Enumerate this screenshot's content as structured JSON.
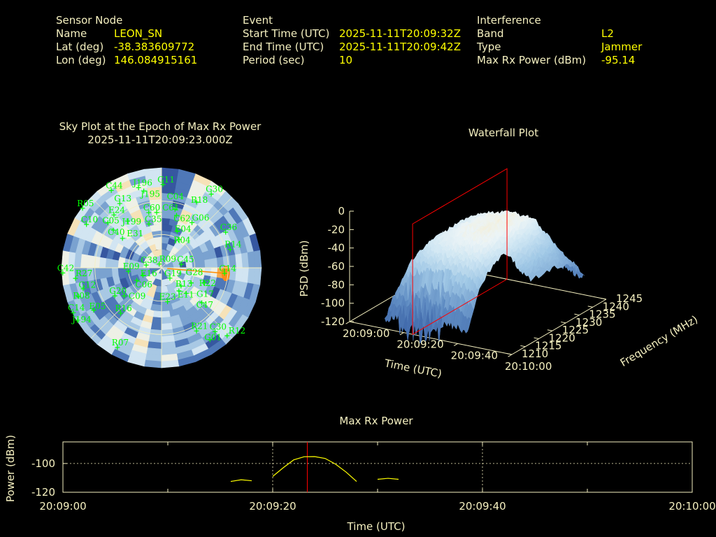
{
  "header": {
    "sensor": {
      "title": "Sensor Node",
      "rows": [
        {
          "label": "Name",
          "value": "LEON_SN"
        },
        {
          "label": "Lat (deg)",
          "value": "-38.383609772"
        },
        {
          "label": "Lon (deg)",
          "value": "146.084915161"
        }
      ]
    },
    "event": {
      "title": "Event",
      "rows": [
        {
          "label": "Start Time (UTC)",
          "value": "2025-11-11T20:09:32Z"
        },
        {
          "label": "End Time (UTC)",
          "value": "2025-11-11T20:09:42Z"
        },
        {
          "label": "Period (sec)",
          "value": "10"
        }
      ]
    },
    "interference": {
      "title": "Interference",
      "rows": [
        {
          "label": "Band",
          "value": "L2"
        },
        {
          "label": "Type",
          "value": "Jammer"
        },
        {
          "label": "Max Rx Power (dBm)",
          "value": "-95.14"
        }
      ]
    }
  },
  "colors": {
    "label": "#f5f0c0",
    "value": "#ffff00",
    "satellite": "#00ff00",
    "marker": "#ff0000",
    "trace": "#ffff00"
  },
  "chart_data": [
    {
      "type": "heatmap",
      "subtype": "polar-sky-plot",
      "title": "Sky Plot at the Epoch of Max Rx Power",
      "subtitle": "2025-11-11T20:09:23.000Z",
      "elevation_rings_deg": [
        0,
        30,
        60
      ],
      "hotspot": {
        "az": 95,
        "el": 32,
        "near": "G14"
      },
      "satellites": [
        {
          "id": "G11",
          "az": 1,
          "el": 15
        },
        {
          "id": "J196",
          "az": 344,
          "el": 15
        },
        {
          "id": "J195",
          "az": 347,
          "el": 19
        },
        {
          "id": "C44",
          "az": 327,
          "el": 7
        },
        {
          "id": "G30",
          "az": 34,
          "el": 10
        },
        {
          "id": "R18",
          "az": 28,
          "el": 23
        },
        {
          "id": "G13",
          "az": 327,
          "el": 21
        },
        {
          "id": "R05",
          "az": 307,
          "el": 1
        },
        {
          "id": "E24",
          "az": 318,
          "el": 26
        },
        {
          "id": "C60",
          "az": 347,
          "el": 39
        },
        {
          "id": "C61",
          "az": 355,
          "el": 40
        },
        {
          "id": "C04",
          "az": 13,
          "el": 36
        },
        {
          "id": "C62",
          "az": 16,
          "el": 41
        },
        {
          "id": "C05",
          "az": 310,
          "el": 27
        },
        {
          "id": "J199",
          "az": 324,
          "el": 38
        },
        {
          "id": "G06",
          "az": 34,
          "el": 41
        },
        {
          "id": "C10",
          "az": 300,
          "el": 12
        },
        {
          "id": "C35",
          "az": 344,
          "el": 49
        },
        {
          "id": "C40",
          "az": 308,
          "el": 35
        },
        {
          "id": "E04",
          "az": 23,
          "el": 54
        },
        {
          "id": "C36",
          "az": 61,
          "el": 24
        },
        {
          "id": "E31",
          "az": 307,
          "el": 46
        },
        {
          "id": "R04",
          "az": 32,
          "el": 60
        },
        {
          "id": "R14",
          "az": 75,
          "el": 26
        },
        {
          "id": "C42",
          "az": 267,
          "el": 1
        },
        {
          "id": "E09",
          "az": 264,
          "el": 60
        },
        {
          "id": "C38",
          "az": 280,
          "el": 76
        },
        {
          "id": "R09",
          "az": 329,
          "el": 86
        },
        {
          "id": "C45",
          "az": 80,
          "el": 72
        },
        {
          "id": "G14",
          "az": 95,
          "el": 33
        },
        {
          "id": "R27",
          "az": 263,
          "el": 12
        },
        {
          "id": "E16",
          "az": 248,
          "el": 72
        },
        {
          "id": "C06",
          "az": 243,
          "el": 65
        },
        {
          "id": "G19",
          "az": 141,
          "el": 78
        },
        {
          "id": "R13",
          "az": 133,
          "el": 66
        },
        {
          "id": "G28",
          "az": 117,
          "el": 60
        },
        {
          "id": "R22",
          "az": 109,
          "el": 49
        },
        {
          "id": "G12",
          "az": 255,
          "el": 17
        },
        {
          "id": "E11",
          "az": 143,
          "el": 64
        },
        {
          "id": "G17",
          "az": 136,
          "el": 58
        },
        {
          "id": "R08",
          "az": 251,
          "el": 11
        },
        {
          "id": "G20",
          "az": 239,
          "el": 41
        },
        {
          "id": "C09",
          "az": 233,
          "el": 48
        },
        {
          "id": "E23",
          "az": 170,
          "el": 59
        },
        {
          "id": "C47",
          "az": 131,
          "el": 42
        },
        {
          "id": "C14",
          "az": 243,
          "el": 1
        },
        {
          "id": "E05",
          "az": 238,
          "el": 18
        },
        {
          "id": "R16",
          "az": 222,
          "el": 35
        },
        {
          "id": "J194",
          "az": 238,
          "el": 1
        },
        {
          "id": "R21",
          "az": 151,
          "el": 25
        },
        {
          "id": "C30",
          "az": 140,
          "el": 15
        },
        {
          "id": "R12",
          "az": 136,
          "el": 5
        },
        {
          "id": "G01",
          "az": 146,
          "el": 12
        },
        {
          "id": "R07",
          "az": 209,
          "el": 8
        }
      ]
    },
    {
      "type": "surface",
      "title": "Waterfall Plot",
      "xlabel": "Time (UTC)",
      "ylabel": "Frequency (MHz)",
      "zlabel": "PSD (dBm)",
      "x_ticks": [
        "20:09:00",
        "20:09:20",
        "20:09:40",
        "20:10:00"
      ],
      "y_ticks": [
        1210,
        1215,
        1220,
        1225,
        1230,
        1235,
        1240,
        1245
      ],
      "z_ticks": [
        0,
        -20,
        -40,
        -60,
        -80,
        -100,
        -120
      ],
      "xlim_sec": [
        0,
        60
      ],
      "ylim": [
        1210,
        1245
      ],
      "zlim": [
        -120,
        0
      ],
      "marker_time_sec": 23.3,
      "peak_psd_by_time": {
        "t_sec": [
          13,
          16,
          20,
          24,
          28,
          32,
          36,
          40,
          44,
          48,
          52
        ],
        "psd": [
          -75,
          -50,
          -38,
          -32,
          -28,
          -26,
          -25,
          -27,
          -45,
          -60,
          -70
        ]
      }
    },
    {
      "type": "line",
      "title": "Max Rx Power",
      "xlabel": "Time (UTC)",
      "ylabel": "Power (dBm)",
      "x_ticks": [
        "20:09:00",
        "20:09:20",
        "20:09:40",
        "20:10:00"
      ],
      "y_ticks": [
        -100,
        -120
      ],
      "xlim_sec": [
        0,
        60
      ],
      "ylim": [
        -120,
        -85
      ],
      "marker_time_sec": 23.3,
      "segments": [
        {
          "t": [
            16,
            17,
            18
          ],
          "p": [
            -112.5,
            -111.3,
            -112
          ]
        },
        {
          "t": [
            20,
            21,
            22,
            23,
            24,
            25,
            26,
            27,
            28
          ],
          "p": [
            -109,
            -103,
            -97.5,
            -95.3,
            -95.2,
            -96.5,
            -100.5,
            -106,
            -112.5
          ]
        },
        {
          "t": [
            30,
            31,
            32
          ],
          "p": [
            -111,
            -110.3,
            -111
          ]
        }
      ]
    }
  ]
}
